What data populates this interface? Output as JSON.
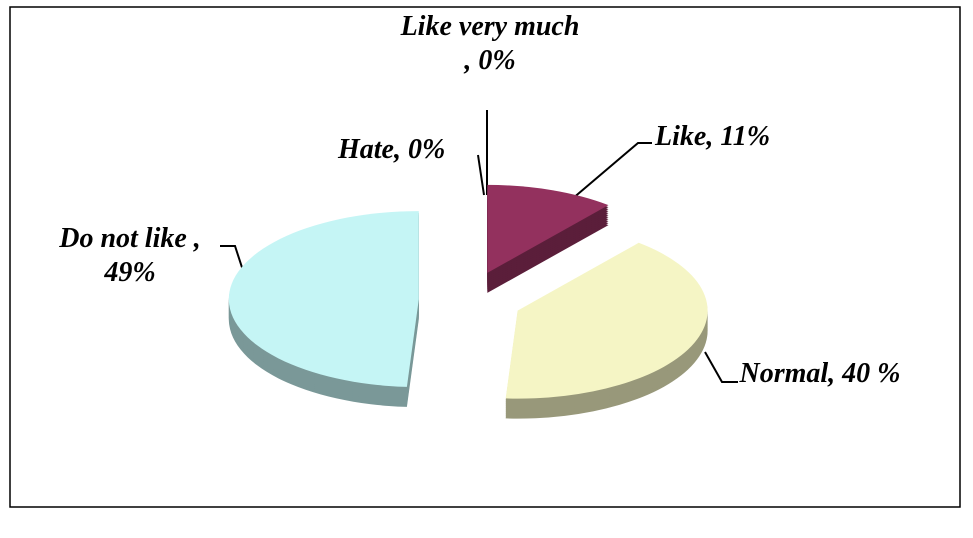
{
  "chart_data": {
    "type": "pie",
    "categories": [
      "Like very much",
      "Like",
      "Normal",
      "Do not like",
      "Hate"
    ],
    "values": [
      0,
      11,
      40,
      49,
      0
    ],
    "value_labels": [
      ", 0%",
      ", 11%",
      ", 40 %",
      ", 49%",
      ", 0%"
    ],
    "colors": [
      "#c0504d",
      "#93315e",
      "#f5f5c5",
      "#c5f5f5",
      "#9bbb59"
    ]
  }
}
